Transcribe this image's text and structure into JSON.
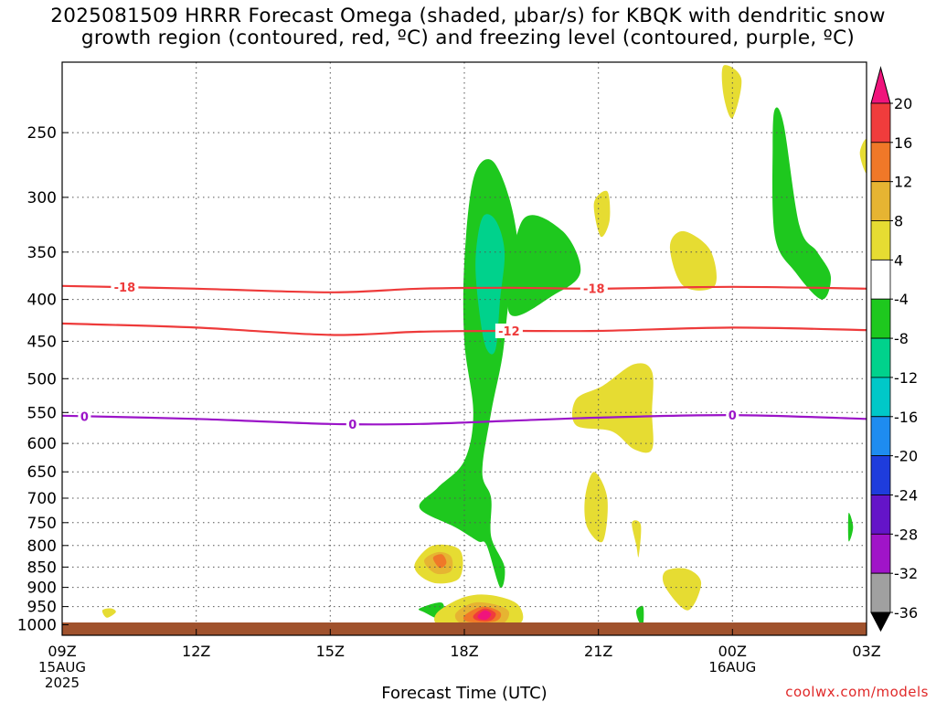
{
  "page": {
    "title_line1": "2025081509 HRRR Forecast Omega (shaded, μbar/s) for KBQK with dendritic snow",
    "title_line2": "growth region (contoured, red, ºC) and freezing level (contoured, purple, ºC)",
    "credit": "coolwx.com/models"
  },
  "chart_data": {
    "type": "time-height cross section",
    "xlabel": "Forecast Time (UTC)",
    "ylabel": "",
    "x_range_hours_from_start": [
      0,
      18
    ],
    "x_ticks": [
      {
        "hour": 0,
        "label": "09Z",
        "sub": [
          "15AUG",
          "2025"
        ]
      },
      {
        "hour": 3,
        "label": "12Z",
        "sub": []
      },
      {
        "hour": 6,
        "label": "15Z",
        "sub": []
      },
      {
        "hour": 9,
        "label": "18Z",
        "sub": []
      },
      {
        "hour": 12,
        "label": "21Z",
        "sub": []
      },
      {
        "hour": 15,
        "label": "00Z",
        "sub": [
          "16AUG"
        ]
      },
      {
        "hour": 18,
        "label": "03Z",
        "sub": []
      }
    ],
    "y_scale": "log pressure (hPa)",
    "y_range": [
      1030,
      205
    ],
    "y_ticks": [
      250,
      300,
      350,
      400,
      450,
      500,
      550,
      600,
      650,
      700,
      750,
      800,
      850,
      900,
      950,
      1000
    ],
    "grid": true,
    "surface_color": "#a0522d",
    "surface_hpa": 1015,
    "colorbar": {
      "labels": [
        "20",
        "16",
        "12",
        "8",
        "4",
        "-4",
        "-8",
        "-12",
        "-16",
        "-20",
        "-24",
        "-28",
        "-32",
        "-36"
      ],
      "colors": [
        "#f0147c",
        "#f03c3c",
        "#f07828",
        "#e6b432",
        "#e6dc32",
        "#ffffff",
        "#1ec81e",
        "#00d28c",
        "#00c8c8",
        "#1e8cf0",
        "#1e3cdc",
        "#6414c8",
        "#a014c8",
        "#a0a0a0",
        "#000000"
      ]
    },
    "isotherms": [
      {
        "name": "-18",
        "color": "#ee3a3a",
        "points": [
          [
            0,
            385
          ],
          [
            3,
            388
          ],
          [
            6,
            392
          ],
          [
            8,
            388
          ],
          [
            10,
            387
          ],
          [
            12,
            388
          ],
          [
            15,
            386
          ],
          [
            18,
            388
          ]
        ],
        "label_hours": [
          1.4,
          11.9
        ]
      },
      {
        "name": "-12",
        "color": "#ee3a3a",
        "points": [
          [
            0,
            428
          ],
          [
            3,
            433
          ],
          [
            6,
            442
          ],
          [
            8,
            438
          ],
          [
            10,
            437
          ],
          [
            12,
            437
          ],
          [
            15,
            433
          ],
          [
            18,
            436
          ]
        ],
        "label_hours": [
          10.0
        ]
      },
      {
        "name": "0",
        "color": "#9b14c8",
        "points": [
          [
            0,
            555
          ],
          [
            3,
            560
          ],
          [
            6,
            568
          ],
          [
            8,
            568
          ],
          [
            10,
            563
          ],
          [
            12,
            558
          ],
          [
            15,
            554
          ],
          [
            18,
            560
          ]
        ],
        "label_hours": [
          0.5,
          6.5,
          15.0
        ]
      }
    ],
    "omega_areas": [
      {
        "value_class": "-8",
        "color": "#1ec81e",
        "outline": [
          [
            9.5,
            800
          ],
          [
            9.8,
            900
          ],
          [
            9.9,
            850
          ],
          [
            9.6,
            780
          ],
          [
            9.6,
            700
          ],
          [
            9.4,
            650
          ],
          [
            9.6,
            550
          ],
          [
            9.85,
            470
          ],
          [
            10.0,
            400
          ],
          [
            10.2,
            350
          ],
          [
            10.0,
            300
          ],
          [
            9.6,
            270
          ],
          [
            9.2,
            285
          ],
          [
            9.0,
            360
          ],
          [
            9.0,
            450
          ],
          [
            9.2,
            550
          ],
          [
            9.0,
            630
          ],
          [
            8.4,
            680
          ],
          [
            8.0,
            720
          ],
          [
            8.8,
            760
          ],
          [
            9.3,
            790
          ]
        ]
      },
      {
        "value_class": "-12",
        "color": "#00d28c",
        "outline": [
          [
            9.7,
            460
          ],
          [
            9.8,
            400
          ],
          [
            9.9,
            350
          ],
          [
            9.7,
            320
          ],
          [
            9.4,
            318
          ],
          [
            9.25,
            360
          ],
          [
            9.35,
            420
          ],
          [
            9.5,
            460
          ]
        ]
      },
      {
        "value_class": "-8",
        "color": "#1ec81e",
        "outline": [
          [
            10.0,
            415
          ],
          [
            11.0,
            395
          ],
          [
            11.6,
            370
          ],
          [
            11.2,
            330
          ],
          [
            10.3,
            320
          ]
        ]
      },
      {
        "value_class": "-8",
        "color": "#1ec81e",
        "outline": [
          [
            15.95,
            234
          ],
          [
            16.15,
            245
          ],
          [
            16.5,
            325
          ],
          [
            16.9,
            350
          ],
          [
            17.2,
            375
          ],
          [
            17.0,
            400
          ],
          [
            16.4,
            370
          ],
          [
            15.95,
            335
          ],
          [
            15.9,
            260
          ]
        ]
      },
      {
        "value_class": "-8",
        "color": "#1ec81e",
        "outline": [
          [
            17.6,
            790
          ],
          [
            17.6,
            730
          ],
          [
            17.7,
            760
          ]
        ]
      },
      {
        "value_class": "-8",
        "color": "#1ec81e",
        "outline": [
          [
            8.0,
            955
          ],
          [
            8.5,
            940
          ],
          [
            8.5,
            985
          ],
          [
            8.1,
            965
          ]
        ]
      },
      {
        "value_class": "-8",
        "color": "#1ec81e",
        "outline": [
          [
            12.85,
            960
          ],
          [
            13.0,
            950
          ],
          [
            13.0,
            1000
          ],
          [
            12.9,
            990
          ]
        ]
      },
      {
        "value_class": "4",
        "color": "#e6dc32",
        "outline": [
          [
            14.8,
            207
          ],
          [
            15.2,
            215
          ],
          [
            15.0,
            240
          ],
          [
            14.8,
            225
          ]
        ]
      },
      {
        "value_class": "4",
        "color": "#e6dc32",
        "outline": [
          [
            17.85,
            265
          ],
          [
            18.0,
            255
          ],
          [
            18.0,
            280
          ]
        ]
      },
      {
        "value_class": "4",
        "color": "#e6dc32",
        "outline": [
          [
            11.9,
            305
          ],
          [
            12.2,
            295
          ],
          [
            12.25,
            320
          ],
          [
            12.05,
            335
          ]
        ]
      },
      {
        "value_class": "4",
        "color": "#e6dc32",
        "outline": [
          [
            13.6,
            345
          ],
          [
            13.9,
            330
          ],
          [
            14.5,
            348
          ],
          [
            14.6,
            385
          ],
          [
            13.9,
            385
          ]
        ]
      },
      {
        "value_class": "4",
        "color": "#e6dc32",
        "outline": [
          [
            11.5,
            530
          ],
          [
            12.1,
            510
          ],
          [
            12.8,
            480
          ],
          [
            13.2,
            490
          ],
          [
            13.2,
            550
          ],
          [
            13.2,
            610
          ],
          [
            12.8,
            610
          ],
          [
            12.3,
            580
          ],
          [
            11.5,
            570
          ]
        ]
      },
      {
        "value_class": "4",
        "color": "#e6dc32",
        "outline": [
          [
            11.7,
            700
          ],
          [
            11.9,
            650
          ],
          [
            12.2,
            700
          ],
          [
            12.1,
            790
          ],
          [
            11.75,
            760
          ]
        ]
      },
      {
        "value_class": "4",
        "color": "#e6dc32",
        "outline": [
          [
            12.75,
            750
          ],
          [
            12.95,
            755
          ],
          [
            12.9,
            825
          ],
          [
            12.85,
            800
          ]
        ]
      },
      {
        "value_class": "4",
        "color": "#e6dc32",
        "outline": [
          [
            13.5,
            860
          ],
          [
            14.0,
            855
          ],
          [
            14.3,
            890
          ],
          [
            14.0,
            960
          ],
          [
            13.5,
            900
          ]
        ]
      },
      {
        "value_class": "4",
        "color": "#e6dc32",
        "outline": [
          [
            7.9,
            840
          ],
          [
            8.3,
            800
          ],
          [
            8.9,
            810
          ],
          [
            8.9,
            875
          ],
          [
            8.4,
            890
          ],
          [
            8.0,
            870
          ]
        ]
      },
      {
        "value_class": "8",
        "color": "#e6b432",
        "outline": [
          [
            8.1,
            835
          ],
          [
            8.4,
            815
          ],
          [
            8.7,
            825
          ],
          [
            8.7,
            860
          ],
          [
            8.35,
            865
          ]
        ]
      },
      {
        "value_class": "12",
        "color": "#f07828",
        "outline": [
          [
            8.3,
            828
          ],
          [
            8.5,
            820
          ],
          [
            8.6,
            840
          ],
          [
            8.45,
            852
          ]
        ]
      },
      {
        "value_class": "4",
        "color": "#e6dc32",
        "outline": [
          [
            0.9,
            960
          ],
          [
            1.1,
            955
          ],
          [
            1.2,
            965
          ],
          [
            1.0,
            980
          ]
        ]
      },
      {
        "value_class": "4",
        "color": "#e6dc32",
        "outline": [
          [
            8.4,
            965
          ],
          [
            9.0,
            925
          ],
          [
            9.6,
            920
          ],
          [
            10.2,
            945
          ],
          [
            10.2,
            1000
          ],
          [
            9.0,
            1010
          ],
          [
            8.4,
            1000
          ]
        ]
      },
      {
        "value_class": "8",
        "color": "#e6b432",
        "outline": [
          [
            8.8,
            970
          ],
          [
            9.2,
            940
          ],
          [
            9.7,
            945
          ],
          [
            10.0,
            965
          ],
          [
            9.8,
            1000
          ],
          [
            9.0,
            1000
          ]
        ]
      },
      {
        "value_class": "12",
        "color": "#f07828",
        "outline": [
          [
            9.0,
            975
          ],
          [
            9.4,
            950
          ],
          [
            9.8,
            965
          ],
          [
            9.7,
            990
          ],
          [
            9.1,
            992
          ]
        ]
      },
      {
        "value_class": "16",
        "color": "#f03c3c",
        "outline": [
          [
            9.2,
            975
          ],
          [
            9.45,
            955
          ],
          [
            9.7,
            968
          ],
          [
            9.6,
            988
          ],
          [
            9.3,
            988
          ]
        ]
      },
      {
        "value_class": "20",
        "color": "#f0147c",
        "outline": [
          [
            9.3,
            975
          ],
          [
            9.45,
            960
          ],
          [
            9.6,
            970
          ],
          [
            9.5,
            985
          ],
          [
            9.35,
            984
          ]
        ]
      }
    ]
  }
}
